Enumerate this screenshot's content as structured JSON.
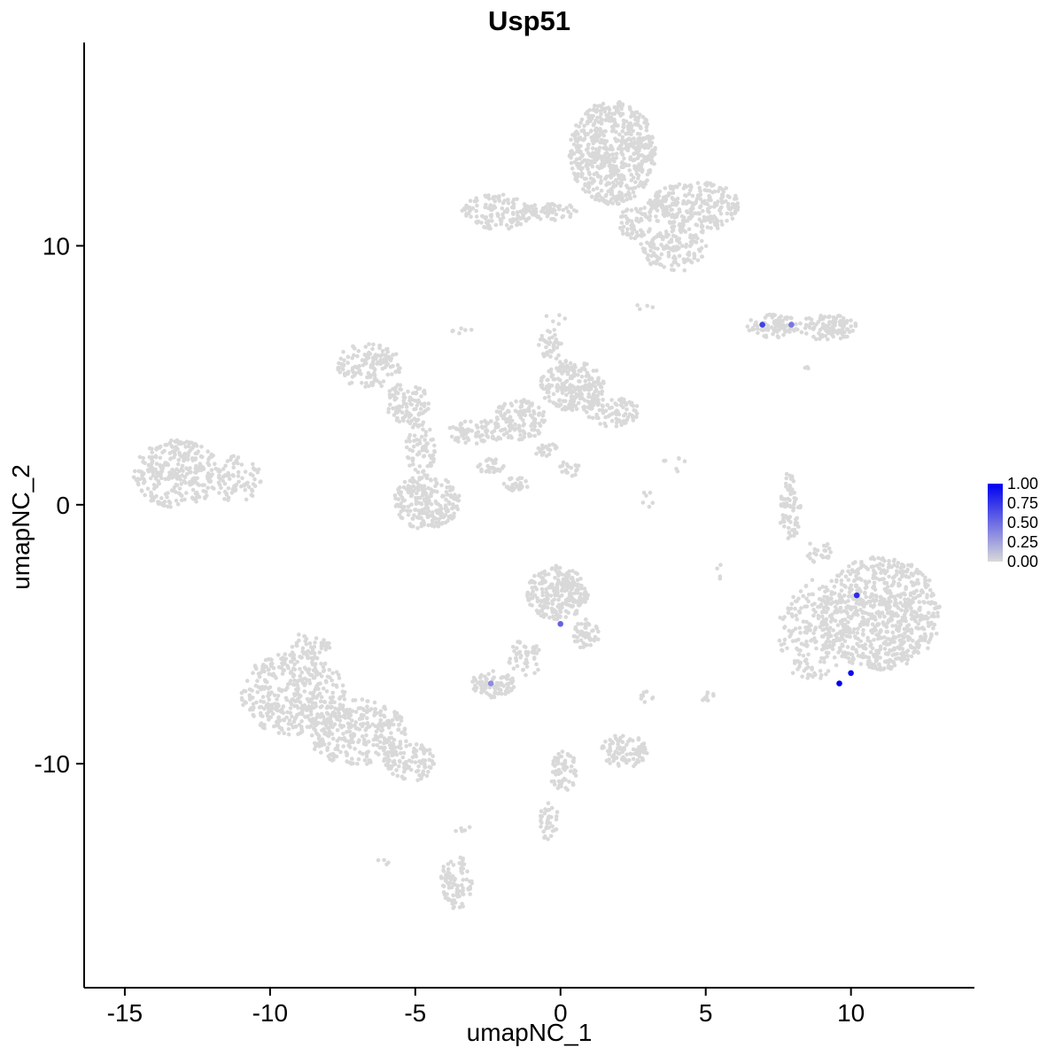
{
  "chart_data": {
    "type": "scatter",
    "title": "Usp51",
    "xlabel": "umapNC_1",
    "ylabel": "umapNC_2",
    "xlim": [
      -16.4,
      14.25
    ],
    "ylim": [
      -18.65,
      17.85
    ],
    "x_ticks": [
      -15,
      -10,
      -5,
      0,
      5,
      10
    ],
    "y_ticks": [
      -10,
      0,
      10
    ],
    "grid": false,
    "background": "#ffffff",
    "axis_color": "#000000",
    "point_color": "#D9D9D9",
    "point_radius": 2.3,
    "expressing_point_radius": 3.3,
    "legend": {
      "ticks": [
        "1.00",
        "0.75",
        "0.50",
        "0.25",
        "0.00"
      ],
      "low_color": "#D9D9D9",
      "high_color": "#0000F0",
      "position": "right"
    },
    "clusters": [
      {
        "cx": 1.8,
        "cy": 13.6,
        "rx": 1.5,
        "ry": 2.0,
        "n": 620
      },
      {
        "cx": 4.6,
        "cy": 11.5,
        "rx": 1.6,
        "ry": 1.0,
        "n": 280
      },
      {
        "cx": 3.9,
        "cy": 9.8,
        "rx": 1.2,
        "ry": 0.8,
        "n": 130
      },
      {
        "cx": 2.6,
        "cy": 10.9,
        "rx": 0.6,
        "ry": 0.7,
        "n": 60
      },
      {
        "cx": -0.3,
        "cy": 11.3,
        "rx": 1.0,
        "ry": 0.35,
        "n": 60
      },
      {
        "cx": -2.2,
        "cy": 11.3,
        "rx": 1.2,
        "ry": 0.7,
        "n": 130
      },
      {
        "cx": 7.3,
        "cy": 6.9,
        "rx": 0.9,
        "ry": 0.45,
        "n": 80
      },
      {
        "cx": 9.2,
        "cy": 6.85,
        "rx": 1.0,
        "ry": 0.5,
        "n": 110
      },
      {
        "cx": 8.4,
        "cy": 5.3,
        "rx": 0.2,
        "ry": 0.15,
        "n": 3
      },
      {
        "cx": -6.6,
        "cy": 5.4,
        "rx": 1.1,
        "ry": 0.9,
        "n": 140
      },
      {
        "cx": -5.3,
        "cy": 3.9,
        "rx": 0.8,
        "ry": 0.8,
        "n": 100
      },
      {
        "cx": -4.8,
        "cy": 2.2,
        "rx": 0.55,
        "ry": 1.0,
        "n": 70
      },
      {
        "cx": -4.6,
        "cy": 0.1,
        "rx": 1.15,
        "ry": 1.05,
        "n": 230
      },
      {
        "cx": -2.9,
        "cy": 2.8,
        "rx": 1.0,
        "ry": 0.5,
        "n": 80
      },
      {
        "cx": -1.4,
        "cy": 3.3,
        "rx": 0.9,
        "ry": 0.8,
        "n": 130
      },
      {
        "cx": 0.4,
        "cy": 4.6,
        "rx": 1.1,
        "ry": 1.0,
        "n": 230
      },
      {
        "cx": -0.3,
        "cy": 6.2,
        "rx": 0.45,
        "ry": 0.6,
        "n": 40
      },
      {
        "cx": 1.8,
        "cy": 3.6,
        "rx": 0.9,
        "ry": 0.6,
        "n": 90
      },
      {
        "cx": -2.4,
        "cy": 1.5,
        "rx": 0.45,
        "ry": 0.3,
        "n": 30
      },
      {
        "cx": -1.5,
        "cy": 0.8,
        "rx": 0.45,
        "ry": 0.3,
        "n": 28
      },
      {
        "cx": -0.5,
        "cy": 2.1,
        "rx": 0.4,
        "ry": 0.3,
        "n": 20
      },
      {
        "cx": 0.3,
        "cy": 1.4,
        "rx": 0.4,
        "ry": 0.3,
        "n": 18
      },
      {
        "cx": -13.2,
        "cy": 1.2,
        "rx": 1.5,
        "ry": 1.3,
        "n": 300
      },
      {
        "cx": -11.2,
        "cy": 1.0,
        "rx": 0.9,
        "ry": 0.9,
        "n": 80
      },
      {
        "cx": 7.9,
        "cy": -0.1,
        "rx": 0.38,
        "ry": 1.4,
        "n": 70
      },
      {
        "cx": -0.1,
        "cy": -3.4,
        "rx": 1.05,
        "ry": 1.05,
        "n": 250
      },
      {
        "cx": 0.9,
        "cy": -5.0,
        "rx": 0.45,
        "ry": 0.6,
        "n": 50
      },
      {
        "cx": -1.2,
        "cy": -5.9,
        "rx": 0.6,
        "ry": 0.7,
        "n": 50
      },
      {
        "cx": -2.3,
        "cy": -6.9,
        "rx": 0.75,
        "ry": 0.55,
        "n": 85
      },
      {
        "cx": 11.0,
        "cy": -4.2,
        "rx": 2.1,
        "ry": 2.2,
        "n": 760
      },
      {
        "cx": 8.7,
        "cy": -4.9,
        "rx": 1.2,
        "ry": 2.0,
        "n": 190
      },
      {
        "cx": 8.9,
        "cy": -1.9,
        "rx": 0.5,
        "ry": 0.5,
        "n": 25
      },
      {
        "cx": -9.2,
        "cy": -7.3,
        "rx": 1.8,
        "ry": 1.6,
        "n": 400
      },
      {
        "cx": -7.0,
        "cy": -8.8,
        "rx": 1.7,
        "ry": 1.3,
        "n": 310
      },
      {
        "cx": -5.2,
        "cy": -9.9,
        "rx": 0.9,
        "ry": 0.8,
        "n": 100
      },
      {
        "cx": -8.6,
        "cy": -5.4,
        "rx": 0.7,
        "ry": 0.5,
        "n": 40
      },
      {
        "cx": 2.2,
        "cy": -9.5,
        "rx": 0.8,
        "ry": 0.65,
        "n": 95
      },
      {
        "cx": 2.9,
        "cy": -7.4,
        "rx": 0.3,
        "ry": 0.25,
        "n": 8
      },
      {
        "cx": 5.1,
        "cy": -7.4,
        "rx": 0.4,
        "ry": 0.2,
        "n": 10
      },
      {
        "cx": 0.1,
        "cy": -10.3,
        "rx": 0.45,
        "ry": 0.85,
        "n": 60
      },
      {
        "cx": -0.4,
        "cy": -12.2,
        "rx": 0.35,
        "ry": 0.75,
        "n": 35
      },
      {
        "cx": -3.6,
        "cy": -14.6,
        "rx": 0.55,
        "ry": 1.05,
        "n": 85
      },
      {
        "cx": -3.4,
        "cy": -12.4,
        "rx": 0.3,
        "ry": 0.3,
        "n": 6
      },
      {
        "cx": -6.1,
        "cy": -13.8,
        "rx": 0.3,
        "ry": 0.2,
        "n": 4
      },
      {
        "cx": 4.0,
        "cy": 1.7,
        "rx": 0.45,
        "ry": 0.45,
        "n": 8
      },
      {
        "cx": 3.0,
        "cy": 0.2,
        "rx": 0.3,
        "ry": 0.4,
        "n": 6
      },
      {
        "cx": 2.9,
        "cy": 7.7,
        "rx": 0.3,
        "ry": 0.2,
        "n": 4
      },
      {
        "cx": -0.2,
        "cy": 7.2,
        "rx": 0.4,
        "ry": 0.25,
        "n": 5
      },
      {
        "cx": -3.5,
        "cy": 6.7,
        "rx": 0.45,
        "ry": 0.3,
        "n": 6
      },
      {
        "cx": 5.5,
        "cy": -2.6,
        "rx": 0.3,
        "ry": 0.3,
        "n": 4
      }
    ],
    "expressing_cells": [
      {
        "x": 6.95,
        "y": 6.95,
        "value": 0.7
      },
      {
        "x": 7.95,
        "y": 6.95,
        "value": 0.45
      },
      {
        "x": 0.0,
        "y": -4.6,
        "value": 0.55
      },
      {
        "x": -2.4,
        "y": -6.9,
        "value": 0.35
      },
      {
        "x": 10.2,
        "y": -3.5,
        "value": 0.8
      },
      {
        "x": 10.0,
        "y": -6.5,
        "value": 0.95
      },
      {
        "x": 9.6,
        "y": -6.9,
        "value": 1.0
      }
    ]
  }
}
